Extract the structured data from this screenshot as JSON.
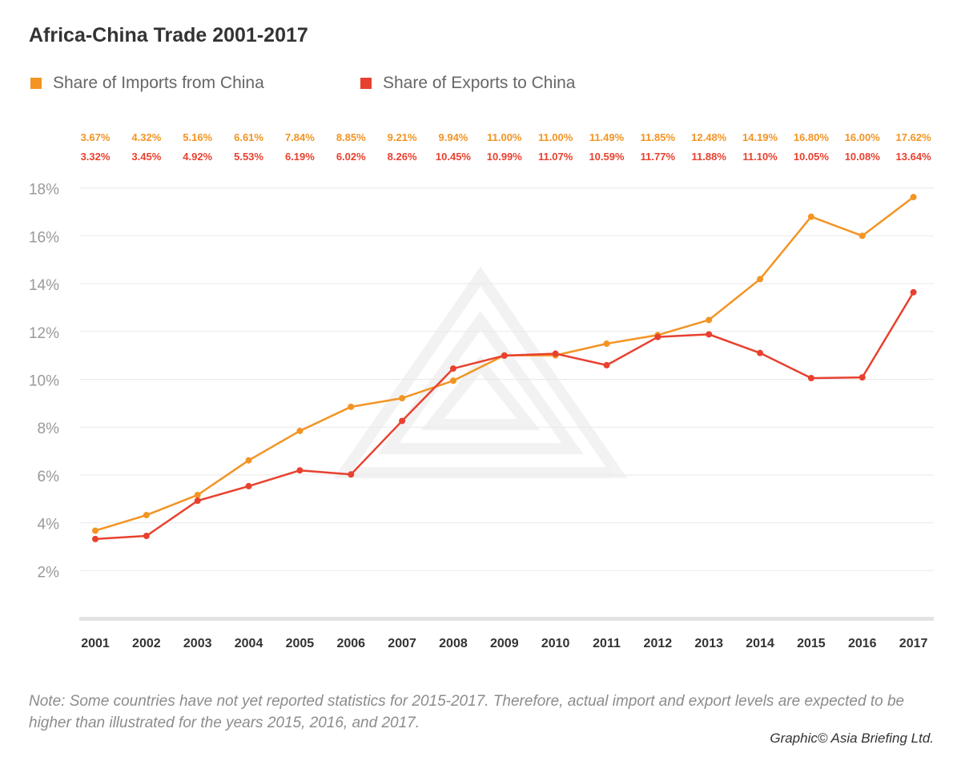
{
  "title": "Africa-China Trade 2001-2017",
  "note": "Note: Some countries have not yet reported statistics for 2015-2017. Therefore, actual import and export levels are expected to be higher than illustrated for the years 2015, 2016, and 2017.",
  "credit": "Graphic© Asia Briefing Ltd.",
  "colors": {
    "imports": "#F39423",
    "exports": "#E8412F",
    "grid": "#e9e9e9",
    "axis": "#e3e3e3",
    "ytick": "#999999",
    "xtick": "#333333"
  },
  "chart_data": {
    "type": "line",
    "title": "Africa-China Trade 2001-2017",
    "xlabel": "",
    "ylabel": "",
    "categories": [
      "2001",
      "2002",
      "2003",
      "2004",
      "2005",
      "2006",
      "2007",
      "2008",
      "2009",
      "2010",
      "2011",
      "2012",
      "2013",
      "2014",
      "2015",
      "2016",
      "2017"
    ],
    "ylim": [
      0,
      18
    ],
    "yticks": [
      2,
      4,
      6,
      8,
      10,
      12,
      14,
      16,
      18
    ],
    "ytick_labels": [
      "2%",
      "4%",
      "6%",
      "8%",
      "10%",
      "12%",
      "14%",
      "16%",
      "18%"
    ],
    "grid": true,
    "legend": "top-left",
    "series": [
      {
        "name": "Share of Imports from China",
        "color": "#F39423",
        "values": [
          3.67,
          4.32,
          5.16,
          6.61,
          7.84,
          8.85,
          9.21,
          9.94,
          11.0,
          11.0,
          11.49,
          11.85,
          12.48,
          14.19,
          16.8,
          16.0,
          17.62
        ],
        "labels": [
          "3.67%",
          "4.32%",
          "5.16%",
          "6.61%",
          "7.84%",
          "8.85%",
          "9.21%",
          "9.94%",
          "11.00%",
          "11.00%",
          "11.49%",
          "11.85%",
          "12.48%",
          "14.19%",
          "16.80%",
          "16.00%",
          "17.62%"
        ]
      },
      {
        "name": "Share of Exports to China",
        "color": "#E8412F",
        "values": [
          3.32,
          3.45,
          4.92,
          5.53,
          6.19,
          6.02,
          8.26,
          10.45,
          10.99,
          11.07,
          10.59,
          11.77,
          11.88,
          11.1,
          10.05,
          10.08,
          13.64
        ],
        "labels": [
          "3.32%",
          "3.45%",
          "4.92%",
          "5.53%",
          "6.19%",
          "6.02%",
          "8.26%",
          "10.45%",
          "10.99%",
          "11.07%",
          "10.59%",
          "11.77%",
          "11.88%",
          "11.10%",
          "10.05%",
          "10.08%",
          "13.64%"
        ]
      }
    ]
  }
}
